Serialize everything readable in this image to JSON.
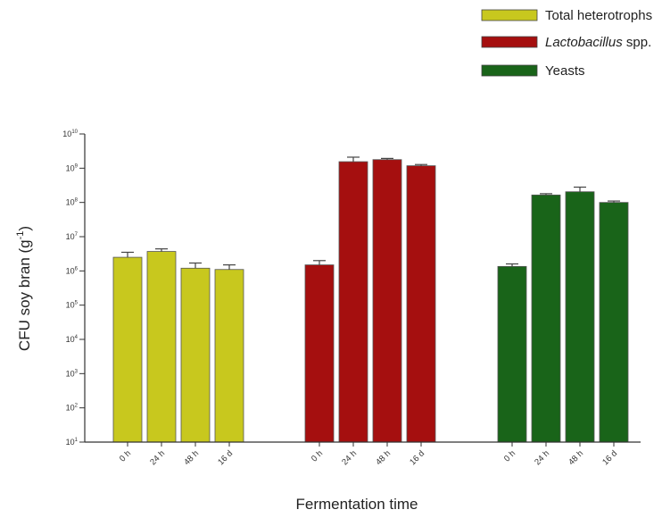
{
  "chart_data": {
    "type": "bar",
    "y_scale": "log",
    "ylabel_prefix": "CFU soy bran (g",
    "ylabel_exp": "-1",
    "ylabel_suffix": ")",
    "xlabel": "Fermentation time",
    "ylim": [
      10,
      10000000000
    ],
    "yticks": [
      {
        "base": "10",
        "exp": "1"
      },
      {
        "base": "10",
        "exp": "2"
      },
      {
        "base": "10",
        "exp": "3"
      },
      {
        "base": "10",
        "exp": "4"
      },
      {
        "base": "10",
        "exp": "5"
      },
      {
        "base": "10",
        "exp": "6"
      },
      {
        "base": "10",
        "exp": "7"
      },
      {
        "base": "10",
        "exp": "8"
      },
      {
        "base": "10",
        "exp": "9"
      },
      {
        "base": "10",
        "exp": "10"
      }
    ],
    "categories": [
      "0 h",
      "24 h",
      "48 h",
      "16 d"
    ],
    "legend_position": "top-right",
    "series": [
      {
        "name": "Total heterotrophs",
        "name_italic": "",
        "color": "#c8c81e",
        "values": [
          2500000,
          3700000,
          1200000,
          1100000
        ],
        "errors": [
          1000000,
          700000,
          500000,
          400000
        ]
      },
      {
        "name": "",
        "name_italic": "Lactobacillus",
        "name_suffix": " spp.",
        "color": "#a50f0f",
        "values": [
          1500000,
          1550000000,
          1780000000,
          1180000000
        ],
        "errors": [
          500000,
          550000000,
          150000000,
          100000000
        ]
      },
      {
        "name": "Yeasts",
        "name_italic": "",
        "color": "#196419",
        "values": [
          1350000,
          165000000,
          205000000,
          100000000
        ],
        "errors": [
          250000,
          15000000,
          75000000,
          10000000
        ]
      }
    ]
  }
}
